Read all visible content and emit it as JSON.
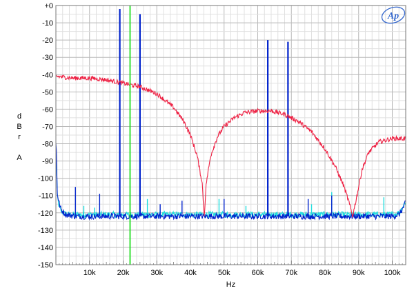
{
  "chart_data": {
    "type": "line",
    "title": "",
    "logo": "Ap",
    "xlabel": "Hz",
    "ylabel_lines": [
      "d",
      "B",
      "r",
      "",
      "A"
    ],
    "xlim": [
      0,
      104000
    ],
    "ylim": [
      -150,
      0
    ],
    "grid": true,
    "x_ticks": [
      {
        "value": 10000,
        "label": "10k"
      },
      {
        "value": 20000,
        "label": "20k"
      },
      {
        "value": 30000,
        "label": "30k"
      },
      {
        "value": 40000,
        "label": "40k"
      },
      {
        "value": 50000,
        "label": "50k"
      },
      {
        "value": 60000,
        "label": "60k"
      },
      {
        "value": 70000,
        "label": "70k"
      },
      {
        "value": 80000,
        "label": "80k"
      },
      {
        "value": 90000,
        "label": "90k"
      },
      {
        "value": 100000,
        "label": "100k"
      }
    ],
    "y_ticks": [
      {
        "value": 0,
        "label": "+0"
      },
      {
        "value": -10,
        "label": "-10"
      },
      {
        "value": -20,
        "label": "-20"
      },
      {
        "value": -30,
        "label": "-30"
      },
      {
        "value": -40,
        "label": "-40"
      },
      {
        "value": -50,
        "label": "-50"
      },
      {
        "value": -60,
        "label": "-60"
      },
      {
        "value": -70,
        "label": "-70"
      },
      {
        "value": -80,
        "label": "-80"
      },
      {
        "value": -90,
        "label": "-90"
      },
      {
        "value": -100,
        "label": "-100"
      },
      {
        "value": -110,
        "label": "-110"
      },
      {
        "value": -120,
        "label": "-120"
      },
      {
        "value": -130,
        "label": "-130"
      },
      {
        "value": -140,
        "label": "-140"
      },
      {
        "value": -150,
        "label": "-150"
      }
    ],
    "marker": {
      "x": 22050,
      "color": "#22dd22"
    },
    "series": [
      {
        "color": "#ee2244",
        "x": [
          100,
          5000,
          10000,
          15000,
          20000,
          25000,
          30000,
          35000,
          38000,
          40000,
          42000,
          43500,
          44100,
          44700,
          46000,
          48000,
          50000,
          53000,
          56000,
          60000,
          64000,
          68000,
          72000,
          76000,
          80000,
          83000,
          85500,
          87000,
          88200,
          89400,
          91000,
          93000,
          96000,
          100000,
          104000
        ],
        "y": [
          -41,
          -42,
          -42,
          -43,
          -45,
          -47,
          -51,
          -59,
          -67,
          -75,
          -87,
          -103,
          -122,
          -103,
          -87,
          -76,
          -70,
          -65,
          -62,
          -61,
          -61,
          -63,
          -67,
          -73,
          -83,
          -93,
          -104,
          -113,
          -122,
          -111,
          -95,
          -85,
          -79,
          -77,
          -77
        ]
      },
      {
        "color": "#0022cc",
        "x": [
          100,
          400,
          800,
          1500,
          3000,
          6000,
          10000,
          20000,
          30000,
          40000,
          50000,
          60000,
          70000,
          80000,
          90000,
          100000,
          102000,
          103000,
          104000
        ],
        "y": [
          -80,
          -108,
          -113,
          -118,
          -121,
          -122,
          -122,
          -122,
          -122,
          -122,
          -122,
          -122,
          -122,
          -122,
          -122,
          -122,
          -121,
          -118,
          -114
        ],
        "spikes": [
          {
            "x": 19000,
            "y": -2
          },
          {
            "x": 25000,
            "y": -5
          },
          {
            "x": 63000,
            "y": -20
          },
          {
            "x": 69000,
            "y": -21
          },
          {
            "x": 5800,
            "y": -105
          },
          {
            "x": 13000,
            "y": -109
          },
          {
            "x": 31000,
            "y": -115
          },
          {
            "x": 37500,
            "y": -113
          },
          {
            "x": 50000,
            "y": -112
          },
          {
            "x": 75000,
            "y": -112
          },
          {
            "x": 82000,
            "y": -110
          }
        ]
      },
      {
        "color": "#22dddd",
        "x": [
          100,
          400,
          800,
          1500,
          3000,
          6000,
          10000,
          20000,
          30000,
          40000,
          50000,
          60000,
          70000,
          80000,
          90000,
          100000,
          102000,
          103000,
          104000
        ],
        "y": [
          -82,
          -110,
          -115,
          -119,
          -121,
          -121,
          -121,
          -121,
          -121,
          -121,
          -121,
          -121,
          -121,
          -121,
          -121,
          -121,
          -120,
          -117,
          -113
        ],
        "spikes": [
          {
            "x": 8300,
            "y": -116
          },
          {
            "x": 11500,
            "y": -117
          },
          {
            "x": 27200,
            "y": -112
          },
          {
            "x": 48500,
            "y": -112
          },
          {
            "x": 56500,
            "y": -116
          },
          {
            "x": 76000,
            "y": -115
          },
          {
            "x": 82000,
            "y": -108
          },
          {
            "x": 97500,
            "y": -111
          }
        ]
      }
    ]
  }
}
